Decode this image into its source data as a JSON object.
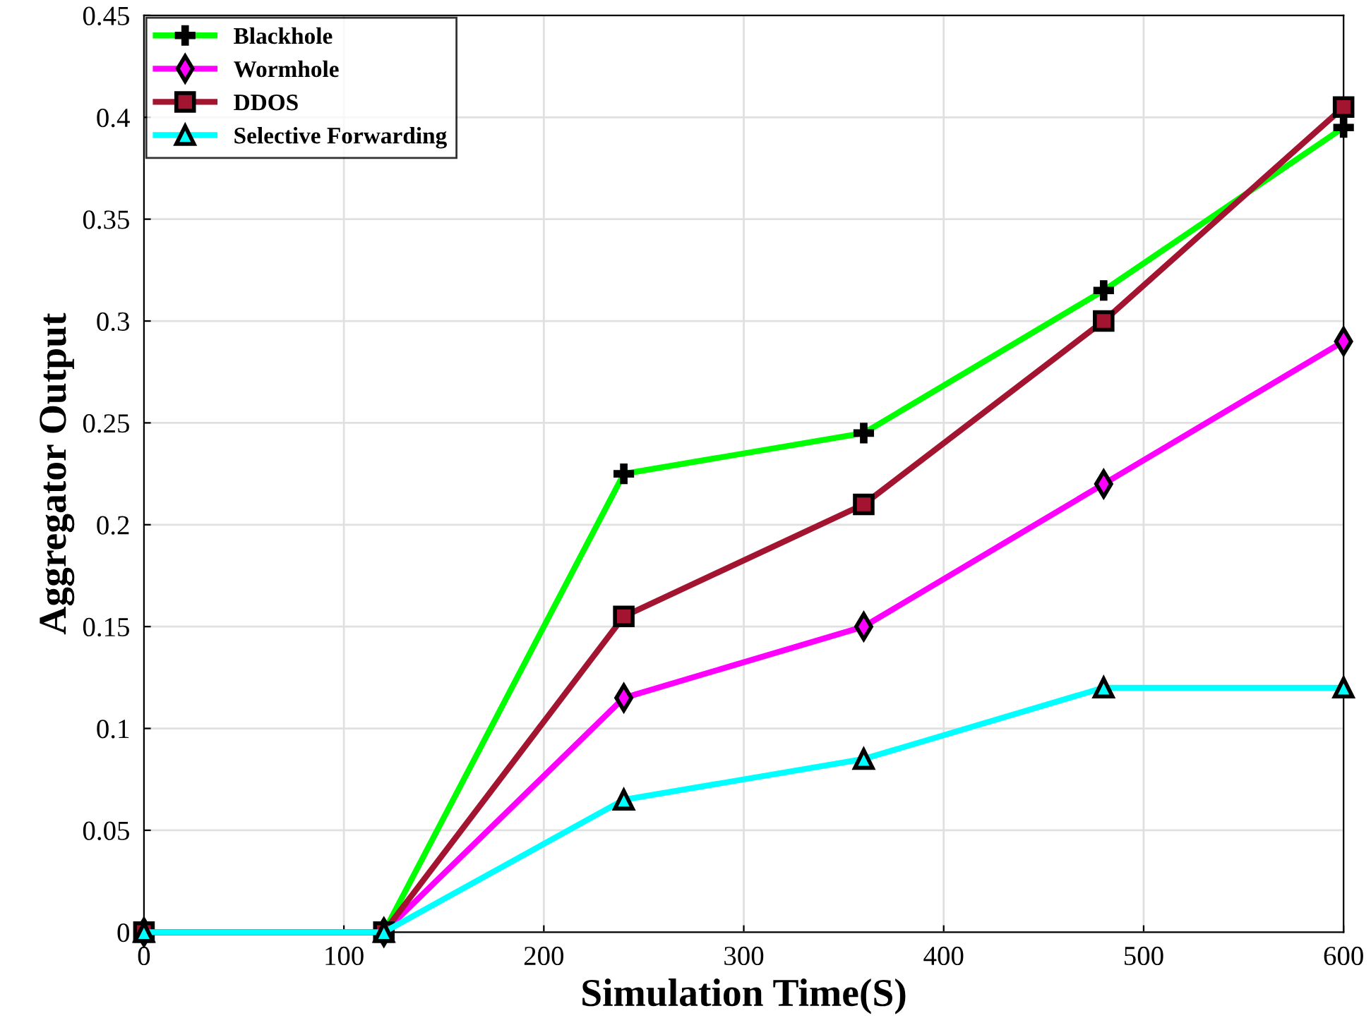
{
  "chart_data": {
    "type": "line",
    "xlabel": "Simulation Time(S)",
    "ylabel": "Aggregator Output",
    "x": [
      0,
      120,
      240,
      360,
      480,
      600
    ],
    "series": [
      {
        "name": "Blackhole",
        "color": "#00ff00",
        "marker": "cross",
        "values": [
          0,
          0,
          0.225,
          0.245,
          0.315,
          0.395
        ]
      },
      {
        "name": "Wormhole",
        "color": "#ff00ff",
        "marker": "diamond",
        "values": [
          0,
          0,
          0.115,
          0.15,
          0.22,
          0.29
        ]
      },
      {
        "name": "DDOS",
        "color": "#a2142f",
        "marker": "square",
        "values": [
          0,
          0,
          0.155,
          0.21,
          0.3,
          0.405
        ]
      },
      {
        "name": "Selective Forwarding",
        "color": "#00ffff",
        "marker": "triangle",
        "values": [
          0,
          0,
          0.065,
          0.085,
          0.12,
          0.12
        ]
      }
    ],
    "xlim": [
      0,
      600
    ],
    "xticks": [
      0,
      100,
      200,
      300,
      400,
      500,
      600
    ],
    "ylim": [
      0,
      0.45
    ],
    "yticks": [
      0,
      0.05,
      0.1,
      0.15,
      0.2,
      0.25,
      0.3,
      0.35,
      0.4,
      0.45
    ],
    "grid": true,
    "legend": "top left",
    "line_style": "solid"
  }
}
